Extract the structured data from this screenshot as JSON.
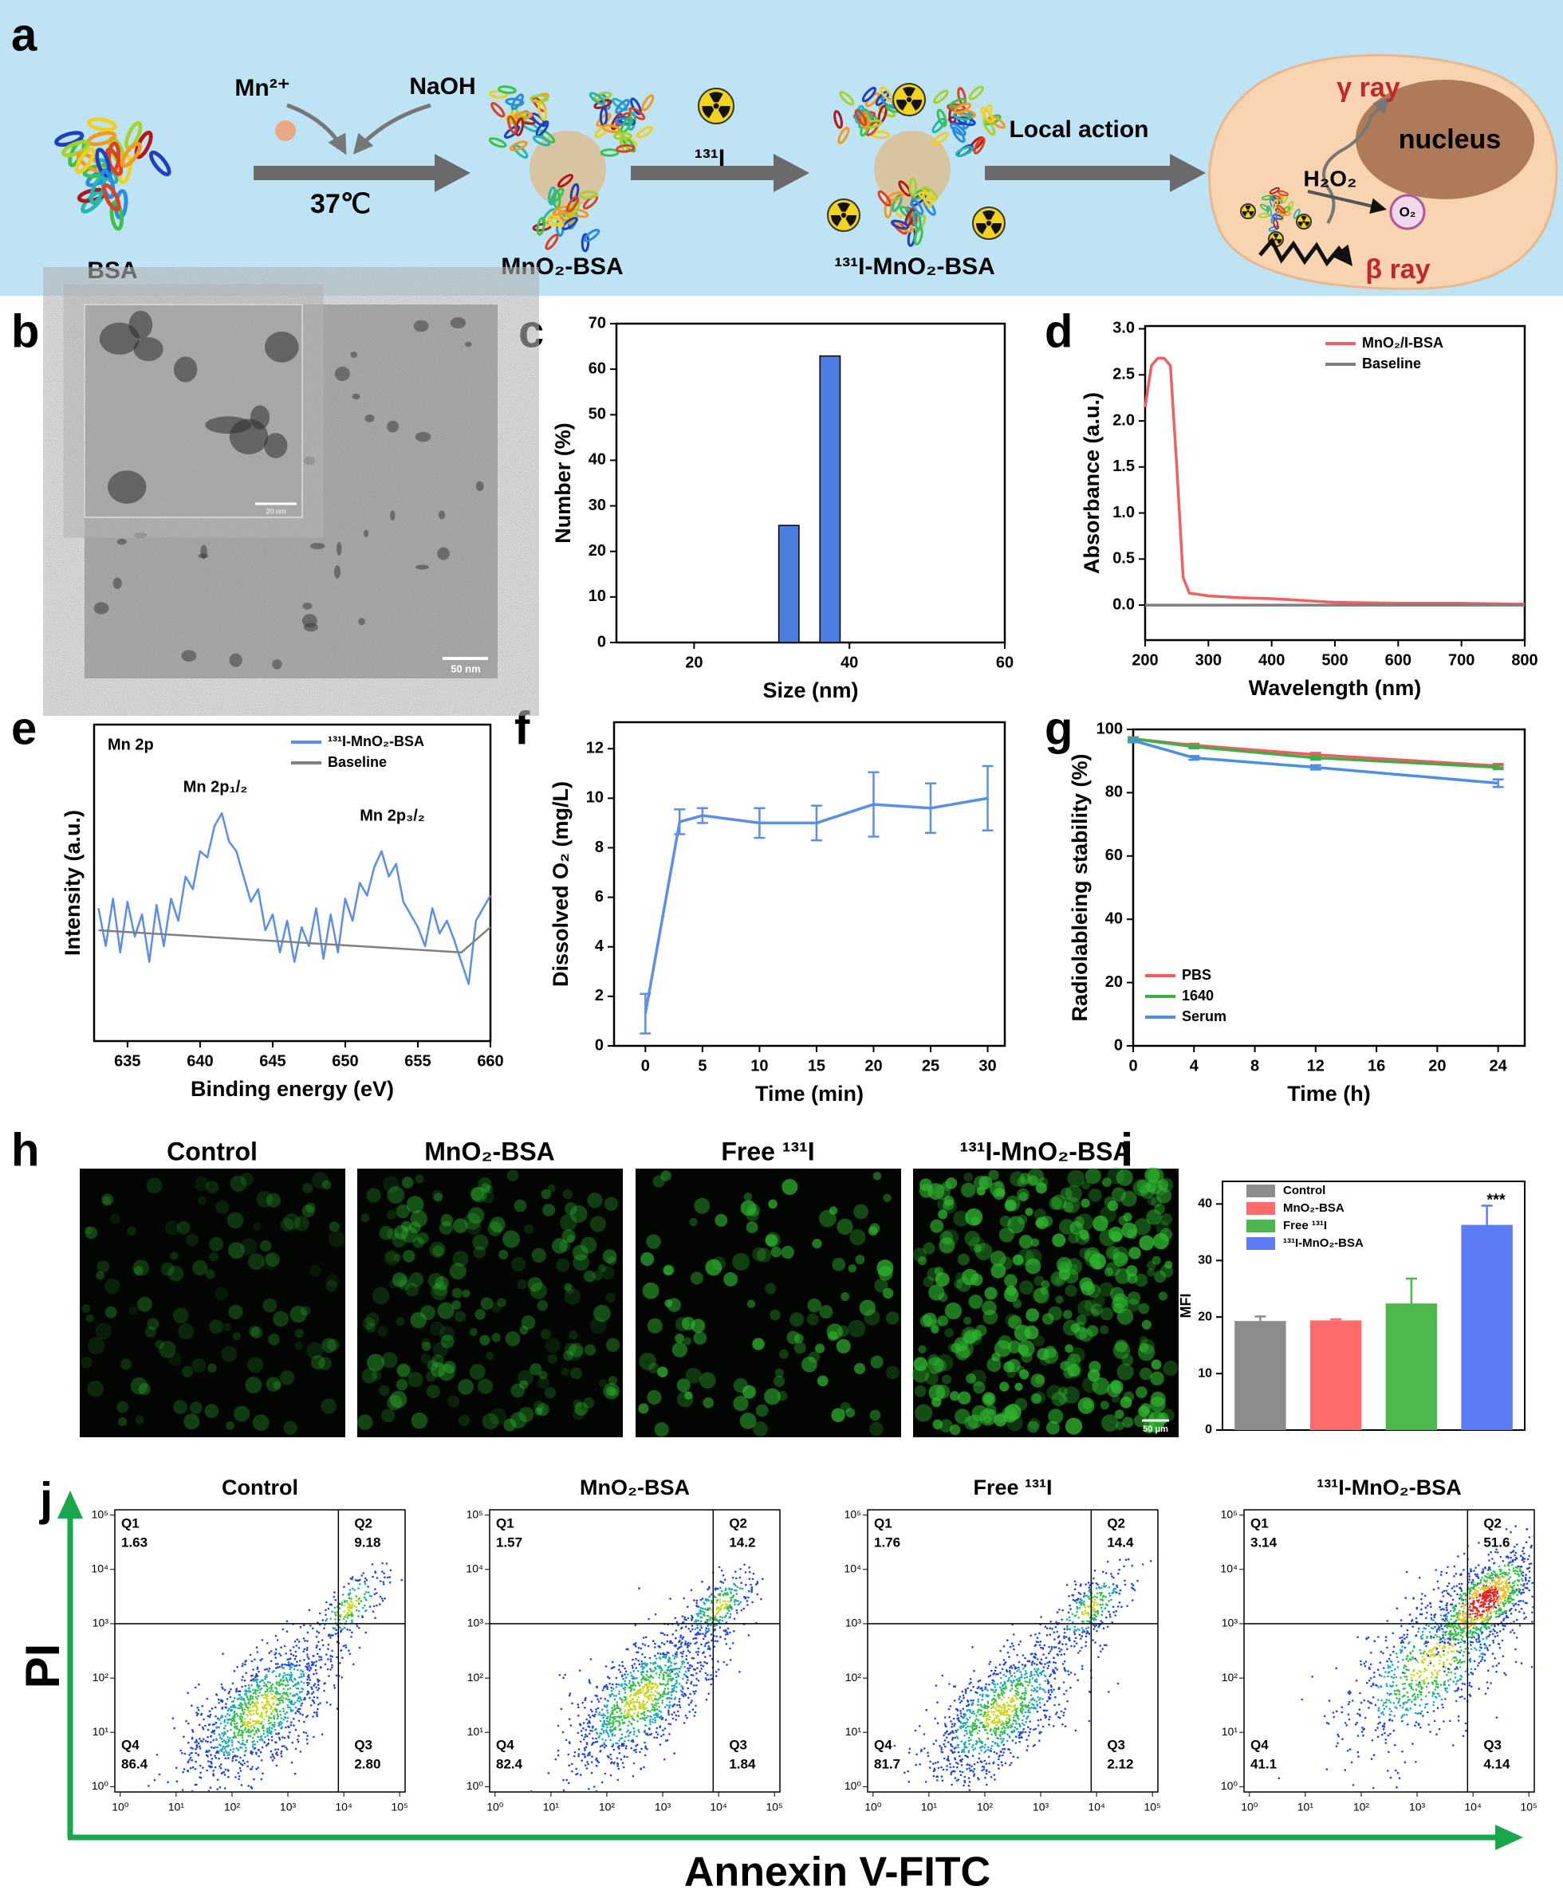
{
  "panel_labels": [
    "a",
    "b",
    "c",
    "d",
    "e",
    "f",
    "g",
    "h",
    "i",
    "j"
  ],
  "schematic": {
    "bsa": "BSA",
    "mn_ion": "Mn²⁺",
    "base": "NaOH",
    "temperature": "37℃",
    "product": "MnO₂-BSA",
    "isotope": "¹³¹I",
    "labeled_product": "¹³¹I-MnO₂-BSA",
    "action": "Local action",
    "gamma": "γ ray",
    "nucleus": "nucleus",
    "peroxide": "H₂O₂",
    "oxygen": "O₂",
    "beta": "β ray"
  },
  "micrograph": {
    "scale_bar": "50 nm",
    "inset_scale_bar": "20 nm"
  },
  "fluorescence": {
    "titles": [
      "Control",
      "MnO₂-BSA",
      "Free ¹³¹I",
      "¹³¹I-MnO₂-BSA"
    ],
    "scale_bar": "50 μm"
  },
  "chart_data": [
    {
      "type": "bar",
      "xlabel": "Size (nm)",
      "ylabel": "Number (%)",
      "x": [
        32.2,
        37.5
      ],
      "values": [
        25.7,
        62.9
      ],
      "color": "#4a7fe0",
      "xlim": [
        10,
        60
      ],
      "xticks": [
        20,
        40,
        60
      ],
      "ylim": [
        0,
        70
      ],
      "yticks": [
        0,
        10,
        20,
        30,
        40,
        50,
        60,
        70
      ]
    },
    {
      "type": "line",
      "xlabel": "Wavelength (nm)",
      "ylabel": "Absorbance (a.u.)",
      "series": [
        {
          "name": "MnO₂/I-BSA",
          "color": "#f06060",
          "x": [
            200,
            210,
            220,
            230,
            240,
            250,
            260,
            270,
            280,
            300,
            350,
            400,
            450,
            500,
            600,
            700,
            800
          ],
          "values": [
            2.15,
            2.6,
            2.68,
            2.68,
            2.6,
            1.5,
            0.3,
            0.13,
            0.12,
            0.1,
            0.08,
            0.07,
            0.05,
            0.03,
            0.02,
            0.02,
            0.01
          ]
        },
        {
          "name": "Baseline",
          "color": "#7f7f7f",
          "x": [
            200,
            800
          ],
          "values": [
            0,
            0
          ]
        }
      ],
      "xlim": [
        200,
        800
      ],
      "xticks": [
        200,
        300,
        400,
        500,
        600,
        700,
        800
      ],
      "ylim": [
        -0.38,
        3.03
      ],
      "yticks": [
        {
          "value": 0,
          "label": "0.0"
        },
        {
          "value": 0.5,
          "label": "0.5"
        },
        {
          "value": 1,
          "label": "1.0"
        },
        {
          "value": 1.5,
          "label": "1.5"
        },
        {
          "value": 2,
          "label": "2.0"
        },
        {
          "value": 2.5,
          "label": "2.5"
        },
        {
          "value": 3,
          "label": "3.0"
        }
      ],
      "legend": "upper right"
    },
    {
      "type": "line",
      "xlabel": "Binding energy (eV)",
      "ylabel": "Intensity (a.u.)",
      "annotations": [
        "Mn 2p",
        "Mn 2p₁/₂",
        "Mn 2p₃/₂"
      ],
      "series": [
        {
          "name": "¹³¹I-MnO₂-BSA",
          "color": "#5b8ee6",
          "x": [
            633,
            633.5,
            634,
            634.5,
            635,
            635.5,
            636,
            636.5,
            637,
            637.5,
            638,
            638.5,
            639,
            639.5,
            640,
            640.5,
            641,
            641.5,
            642,
            642.5,
            643,
            643.5,
            644,
            644.5,
            645,
            645.5,
            646,
            646.5,
            647,
            647.5,
            648,
            648.5,
            649,
            649.5,
            650,
            650.5,
            651,
            651.5,
            652,
            652.5,
            653,
            653.5,
            654,
            654.5,
            655,
            655.5,
            656,
            656.5,
            657,
            657.5,
            658,
            658.5,
            659,
            659.5,
            660
          ],
          "values": [
            42,
            30,
            45,
            28,
            44,
            33,
            40,
            25,
            43,
            30,
            45,
            38,
            52,
            48,
            60,
            58,
            68,
            72,
            63,
            60,
            52,
            44,
            48,
            35,
            40,
            28,
            38,
            25,
            36,
            30,
            42,
            26,
            40,
            28,
            45,
            38,
            50,
            46,
            55,
            60,
            52,
            56,
            44,
            40,
            36,
            30,
            42,
            34,
            38,
            32,
            25,
            18,
            38,
            42,
            46
          ]
        },
        {
          "name": "Baseline",
          "color": "#808080",
          "x": [
            633,
            658,
            660
          ],
          "values": [
            35,
            28,
            36
          ]
        }
      ],
      "xlim": [
        632.7,
        660
      ],
      "xticks": [
        635,
        640,
        645,
        650,
        655,
        660
      ],
      "ylim": [
        0,
        100
      ],
      "legend": "upper right"
    },
    {
      "type": "line",
      "xlabel": "Time (min)",
      "ylabel": "Dissolved O₂ (mg/L)",
      "series": [
        {
          "name": "Dissolved O₂",
          "color": "#5b8ee6",
          "x": [
            0,
            3,
            5,
            10,
            15,
            20,
            25,
            30
          ],
          "values": [
            1.3,
            9.05,
            9.3,
            9.0,
            9.0,
            9.75,
            9.6,
            10.0
          ],
          "errors": [
            0.8,
            0.5,
            0.3,
            0.6,
            0.7,
            1.3,
            1.0,
            1.3
          ]
        }
      ],
      "xlim": [
        -2.75,
        31.5
      ],
      "xticks": [
        0,
        5,
        10,
        15,
        20,
        25,
        30
      ],
      "ylim": [
        0,
        13.07
      ],
      "yticks": [
        0,
        2,
        4,
        6,
        8,
        10,
        12
      ]
    },
    {
      "type": "line",
      "xlabel": "Time (h)",
      "ylabel": "Radiolableing stability (%)",
      "series": [
        {
          "name": "PBS",
          "color": "#f15b5b",
          "x": [
            0,
            4,
            12,
            24
          ],
          "values": [
            97,
            95,
            92,
            88.5
          ],
          "errors": [
            0.5,
            0.5,
            0.6,
            0.6
          ]
        },
        {
          "name": "1640",
          "color": "#3fae49",
          "x": [
            0,
            4,
            12,
            24
          ],
          "values": [
            97,
            94.5,
            91,
            88
          ],
          "errors": [
            0.5,
            0.5,
            0.6,
            0.6
          ]
        },
        {
          "name": "Serum",
          "color": "#4a8fe0",
          "x": [
            0,
            4,
            12,
            24
          ],
          "values": [
            96.5,
            91,
            88,
            83
          ],
          "errors": [
            0.6,
            0.6,
            0.7,
            1.2
          ]
        }
      ],
      "xlim": [
        0,
        25.75
      ],
      "xticks": [
        0,
        4,
        8,
        12,
        16,
        20,
        24
      ],
      "ylim": [
        0,
        100
      ],
      "yticks": [
        0,
        20,
        40,
        60,
        80,
        100
      ],
      "legend": "lower left"
    },
    {
      "type": "bar",
      "ylabel": "MFI",
      "annotations": [
        "***"
      ],
      "categories": [
        "Control",
        "MnO₂-BSA",
        "Free ¹³¹I",
        "¹³¹I-MnO₂-BSA"
      ],
      "values": [
        19.3,
        19.4,
        22.4,
        36.3
      ],
      "errors": [
        0.8,
        0.2,
        4.4,
        3.4
      ],
      "colors": [
        "#8c8c8c",
        "#ff6b6b",
        "#4cb84c",
        "#5b7cf5"
      ],
      "ylim": [
        0,
        44
      ],
      "yticks": [
        0,
        10,
        20,
        30,
        40
      ],
      "legend": "upper left"
    }
  ],
  "flow": {
    "x_label": "Annexin V-FITC",
    "y_label": "PI",
    "quadrant_names": [
      "Q1",
      "Q2",
      "Q3",
      "Q4"
    ],
    "axis_lim": [
      0.8,
      125000
    ],
    "gates": [
      8000,
      1000
    ],
    "ticks": [
      {
        "value": 1,
        "label": "10⁰"
      },
      {
        "value": 10,
        "label": "10¹"
      },
      {
        "value": 100,
        "label": "10²"
      },
      {
        "value": 1000,
        "label": "10³"
      },
      {
        "value": 10000,
        "label": "10⁴"
      },
      {
        "value": 100000,
        "label": "10⁵"
      }
    ],
    "panels": [
      {
        "title": "Control",
        "quadrants": [
          "1.63",
          "9.18",
          "2.80",
          "86.4"
        ]
      },
      {
        "title": "MnO₂-BSA",
        "quadrants": [
          "1.57",
          "14.2",
          "1.84",
          "82.4"
        ]
      },
      {
        "title": "Free ¹³¹I",
        "quadrants": [
          "1.76",
          "14.4",
          "2.12",
          "81.7"
        ]
      },
      {
        "title": "¹³¹I-MnO₂-BSA",
        "quadrants": [
          "3.14",
          "51.6",
          "4.14",
          "41.1"
        ]
      }
    ]
  }
}
